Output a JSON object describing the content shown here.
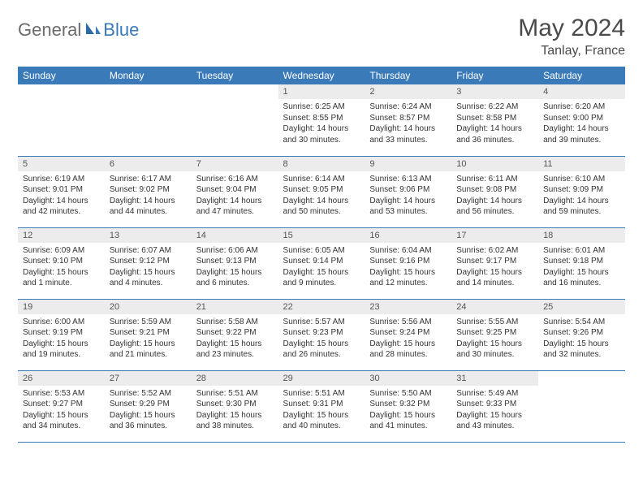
{
  "logo": {
    "text1": "General",
    "text2": "Blue",
    "accent": "#3a7ab8",
    "gray": "#6b6b6b"
  },
  "title": "May 2024",
  "location": "Tanlay, France",
  "colors": {
    "header_bg": "#3a7ab8",
    "header_fg": "#ffffff",
    "daynum_bg": "#ececec",
    "border": "#3a7ab8",
    "body_text": "#333333",
    "title_text": "#4a4a4a"
  },
  "weekdays": [
    "Sunday",
    "Monday",
    "Tuesday",
    "Wednesday",
    "Thursday",
    "Friday",
    "Saturday"
  ],
  "weeks": [
    [
      null,
      null,
      null,
      {
        "n": "1",
        "sr": "6:25 AM",
        "ss": "8:55 PM",
        "dl": "14 hours and 30 minutes."
      },
      {
        "n": "2",
        "sr": "6:24 AM",
        "ss": "8:57 PM",
        "dl": "14 hours and 33 minutes."
      },
      {
        "n": "3",
        "sr": "6:22 AM",
        "ss": "8:58 PM",
        "dl": "14 hours and 36 minutes."
      },
      {
        "n": "4",
        "sr": "6:20 AM",
        "ss": "9:00 PM",
        "dl": "14 hours and 39 minutes."
      }
    ],
    [
      {
        "n": "5",
        "sr": "6:19 AM",
        "ss": "9:01 PM",
        "dl": "14 hours and 42 minutes."
      },
      {
        "n": "6",
        "sr": "6:17 AM",
        "ss": "9:02 PM",
        "dl": "14 hours and 44 minutes."
      },
      {
        "n": "7",
        "sr": "6:16 AM",
        "ss": "9:04 PM",
        "dl": "14 hours and 47 minutes."
      },
      {
        "n": "8",
        "sr": "6:14 AM",
        "ss": "9:05 PM",
        "dl": "14 hours and 50 minutes."
      },
      {
        "n": "9",
        "sr": "6:13 AM",
        "ss": "9:06 PM",
        "dl": "14 hours and 53 minutes."
      },
      {
        "n": "10",
        "sr": "6:11 AM",
        "ss": "9:08 PM",
        "dl": "14 hours and 56 minutes."
      },
      {
        "n": "11",
        "sr": "6:10 AM",
        "ss": "9:09 PM",
        "dl": "14 hours and 59 minutes."
      }
    ],
    [
      {
        "n": "12",
        "sr": "6:09 AM",
        "ss": "9:10 PM",
        "dl": "15 hours and 1 minute."
      },
      {
        "n": "13",
        "sr": "6:07 AM",
        "ss": "9:12 PM",
        "dl": "15 hours and 4 minutes."
      },
      {
        "n": "14",
        "sr": "6:06 AM",
        "ss": "9:13 PM",
        "dl": "15 hours and 6 minutes."
      },
      {
        "n": "15",
        "sr": "6:05 AM",
        "ss": "9:14 PM",
        "dl": "15 hours and 9 minutes."
      },
      {
        "n": "16",
        "sr": "6:04 AM",
        "ss": "9:16 PM",
        "dl": "15 hours and 12 minutes."
      },
      {
        "n": "17",
        "sr": "6:02 AM",
        "ss": "9:17 PM",
        "dl": "15 hours and 14 minutes."
      },
      {
        "n": "18",
        "sr": "6:01 AM",
        "ss": "9:18 PM",
        "dl": "15 hours and 16 minutes."
      }
    ],
    [
      {
        "n": "19",
        "sr": "6:00 AM",
        "ss": "9:19 PM",
        "dl": "15 hours and 19 minutes."
      },
      {
        "n": "20",
        "sr": "5:59 AM",
        "ss": "9:21 PM",
        "dl": "15 hours and 21 minutes."
      },
      {
        "n": "21",
        "sr": "5:58 AM",
        "ss": "9:22 PM",
        "dl": "15 hours and 23 minutes."
      },
      {
        "n": "22",
        "sr": "5:57 AM",
        "ss": "9:23 PM",
        "dl": "15 hours and 26 minutes."
      },
      {
        "n": "23",
        "sr": "5:56 AM",
        "ss": "9:24 PM",
        "dl": "15 hours and 28 minutes."
      },
      {
        "n": "24",
        "sr": "5:55 AM",
        "ss": "9:25 PM",
        "dl": "15 hours and 30 minutes."
      },
      {
        "n": "25",
        "sr": "5:54 AM",
        "ss": "9:26 PM",
        "dl": "15 hours and 32 minutes."
      }
    ],
    [
      {
        "n": "26",
        "sr": "5:53 AM",
        "ss": "9:27 PM",
        "dl": "15 hours and 34 minutes."
      },
      {
        "n": "27",
        "sr": "5:52 AM",
        "ss": "9:29 PM",
        "dl": "15 hours and 36 minutes."
      },
      {
        "n": "28",
        "sr": "5:51 AM",
        "ss": "9:30 PM",
        "dl": "15 hours and 38 minutes."
      },
      {
        "n": "29",
        "sr": "5:51 AM",
        "ss": "9:31 PM",
        "dl": "15 hours and 40 minutes."
      },
      {
        "n": "30",
        "sr": "5:50 AM",
        "ss": "9:32 PM",
        "dl": "15 hours and 41 minutes."
      },
      {
        "n": "31",
        "sr": "5:49 AM",
        "ss": "9:33 PM",
        "dl": "15 hours and 43 minutes."
      },
      null
    ]
  ],
  "labels": {
    "sunrise": "Sunrise:",
    "sunset": "Sunset:",
    "daylight": "Daylight:"
  }
}
